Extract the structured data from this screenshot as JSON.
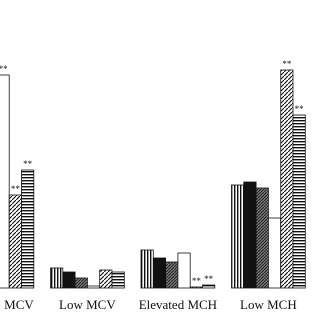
{
  "chart_data": {
    "type": "bar",
    "categories": [
      "MCV",
      "Low MCV",
      "Elevated MCH",
      "Low MCH"
    ],
    "ylim": [
      0,
      288
    ],
    "series": [
      {
        "color": "#111111",
        "pattern": "vertical",
        "values": [
          null,
          20,
          38,
          103
        ]
      },
      {
        "color": "#111111",
        "pattern": "solid",
        "values": [
          null,
          16,
          30,
          106
        ]
      },
      {
        "color": "#111111",
        "pattern": "crosshatch",
        "values": [
          null,
          10,
          26,
          100
        ]
      },
      {
        "color": "#111111",
        "pattern": "none",
        "values": [
          213,
          2,
          35,
          70
        ]
      },
      {
        "color": "#111111",
        "pattern": "diagonal",
        "values": [
          93,
          18,
          1,
          218
        ]
      },
      {
        "color": "#111111",
        "pattern": "horizontal",
        "values": [
          118,
          16,
          3,
          173
        ]
      }
    ],
    "annotations": [
      {
        "text": "**",
        "category": 0,
        "series": 3
      },
      {
        "text": "**",
        "category": 0,
        "series": 4
      },
      {
        "text": "**",
        "category": 0,
        "series": 5
      },
      {
        "text": "**",
        "category": 2,
        "series": 4
      },
      {
        "text": "**",
        "category": 2,
        "series": 5
      },
      {
        "text": "**",
        "category": 3,
        "series": 4
      },
      {
        "text": "**",
        "category": 3,
        "series": 5
      }
    ]
  }
}
